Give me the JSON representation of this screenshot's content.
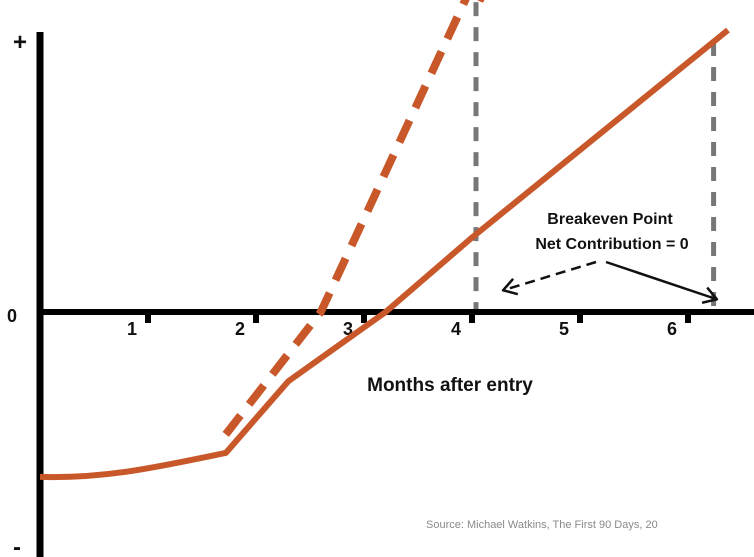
{
  "chart_data": {
    "type": "line",
    "title": "",
    "xlabel": "Months after entry",
    "ylabel": "",
    "x_ticks": [
      1,
      2,
      3,
      4,
      5,
      6
    ],
    "y_labels": {
      "top": "+",
      "zero": "0",
      "bottom": "-"
    },
    "xlim": [
      0,
      6.4
    ],
    "ylim": [
      -1.0,
      1.0
    ],
    "colors": {
      "curve": "#c8582a",
      "axis": "#000000",
      "guide": "#777777",
      "text": "#111111"
    },
    "series": [
      {
        "style": "solid",
        "points": [
          [
            0,
            -0.62
          ],
          [
            0.5,
            -0.615
          ],
          [
            1.0,
            -0.59
          ],
          [
            1.5,
            -0.55
          ],
          [
            1.72,
            -0.53
          ],
          [
            2.3,
            -0.26
          ],
          [
            3.2,
            0.0
          ],
          [
            4.0,
            0.28
          ],
          [
            6.37,
            1.06
          ]
        ]
      },
      {
        "style": "dashed",
        "arrow": true,
        "points": [
          [
            1.72,
            -0.46
          ],
          [
            2.6,
            0.0
          ],
          [
            3.98,
            1.21
          ]
        ]
      }
    ],
    "annotations": {
      "breakeven_title": "Breakeven Point",
      "breakeven_subtitle": "Net Contribution = 0",
      "breakeven_x": [
        4.0,
        6.2
      ]
    },
    "source": "Source: Michael Watkins, The First 90 Days, 20"
  }
}
